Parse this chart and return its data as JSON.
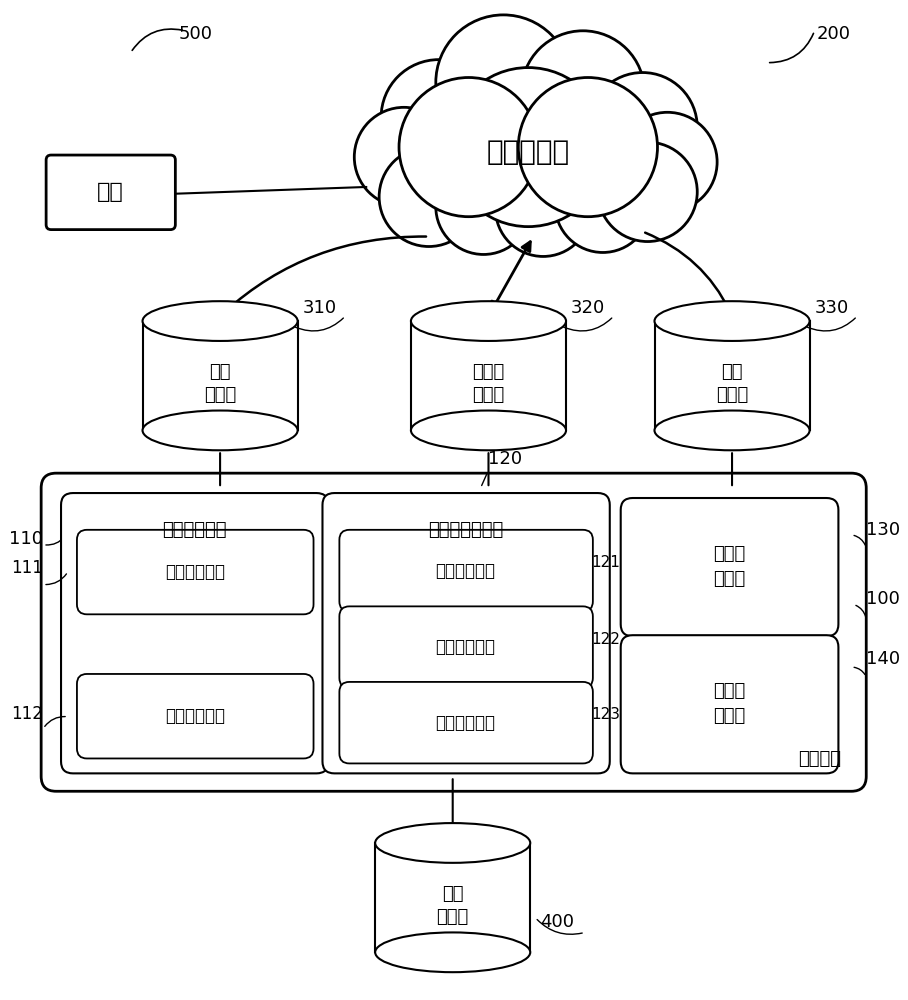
{
  "bg_color": "#ffffff",
  "cloud_text": "交互云平台",
  "terminal_text": "终端",
  "db_user_text": [
    "用户",
    "数据库"
  ],
  "db_lab_text": [
    "实验室",
    "数据库"
  ],
  "db_connect_text": [
    "对接",
    "数据库"
  ],
  "db_external_text": [
    "外部",
    "资源库"
  ],
  "mgmt_label": "管理平台",
  "user_module_text": "用户管理模块",
  "lab_module_text": "实验室管理模块",
  "unit_user_auth": "用户验证单元",
  "unit_order_config": "订单配置单元",
  "unit_proj_config": "项目配置单元",
  "unit_img_config": "图像配置单元",
  "unit_text_config": "文字配置单元",
  "connect_module_text": [
    "对接接",
    "口模块"
  ],
  "order_split_text": [
    "订单拆",
    "解模块"
  ],
  "label_500": "500",
  "label_200": "200",
  "label_310": "310",
  "label_320": "320",
  "label_330": "330",
  "label_120": "120",
  "label_110": "110",
  "label_111": "111",
  "label_112": "112",
  "label_121": "121",
  "label_122": "122",
  "label_123": "123",
  "label_130": "130",
  "label_140": "140",
  "label_100": "100",
  "label_400": "400"
}
